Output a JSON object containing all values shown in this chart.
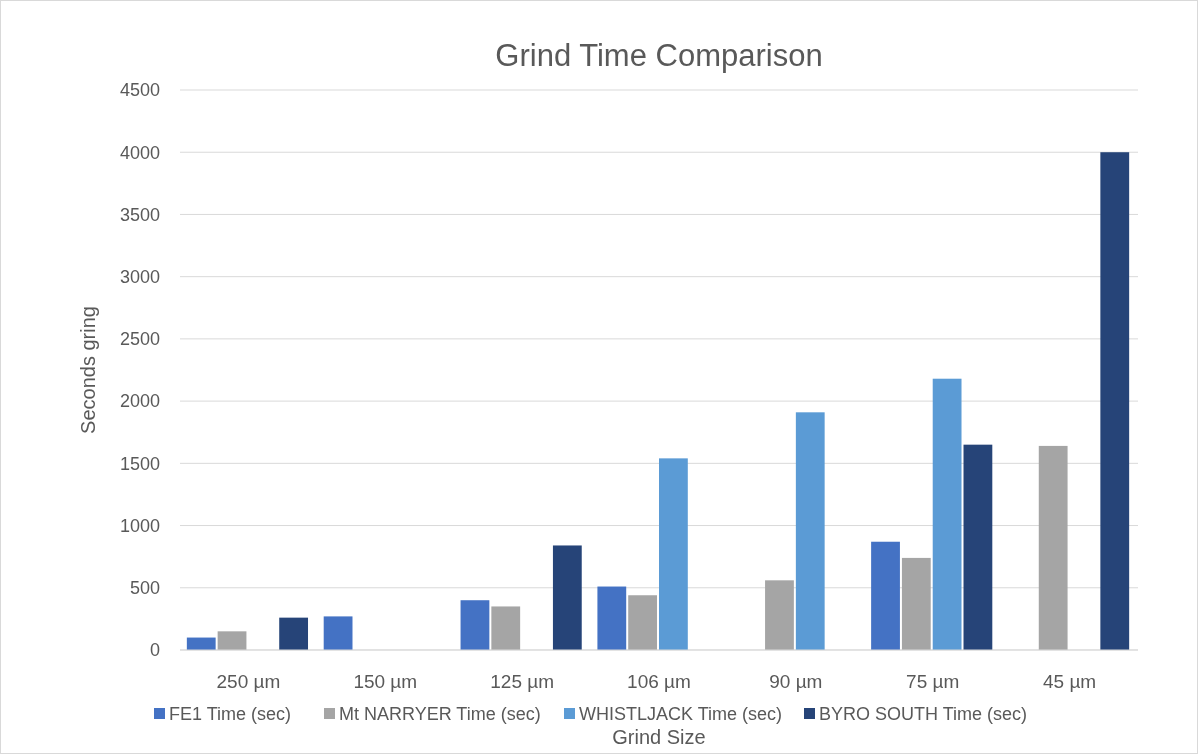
{
  "chart_data": {
    "type": "bar",
    "title": "Grind Time Comparison",
    "xlabel": "Grind Size",
    "ylabel": "Seconds gring",
    "categories": [
      "250 µm",
      "150 µm",
      "125 µm",
      "106 µm",
      "90 µm",
      "75 µm",
      "45 µm"
    ],
    "series": [
      {
        "name": "FE1 Time (sec)",
        "color": "#4472c4",
        "values": [
          100,
          270,
          400,
          510,
          null,
          870,
          null
        ]
      },
      {
        "name": "Mt NARRYER Time (sec)",
        "color": "#a5a5a5",
        "values": [
          150,
          null,
          350,
          440,
          560,
          740,
          1640
        ]
      },
      {
        "name": "WHISTLJACK Time (sec)",
        "color": "#5b9bd5",
        "values": [
          null,
          null,
          null,
          1540,
          1910,
          2180,
          null
        ]
      },
      {
        "name": "BYRO SOUTH Time (sec)",
        "color": "#264478",
        "values": [
          260,
          null,
          840,
          null,
          null,
          1650,
          4000
        ]
      }
    ],
    "ylim": [
      0,
      4500
    ],
    "yticks": [
      0,
      500,
      1000,
      1500,
      2000,
      2500,
      3000,
      3500,
      4000,
      4500
    ],
    "grid": "y",
    "legend": "bottom"
  }
}
